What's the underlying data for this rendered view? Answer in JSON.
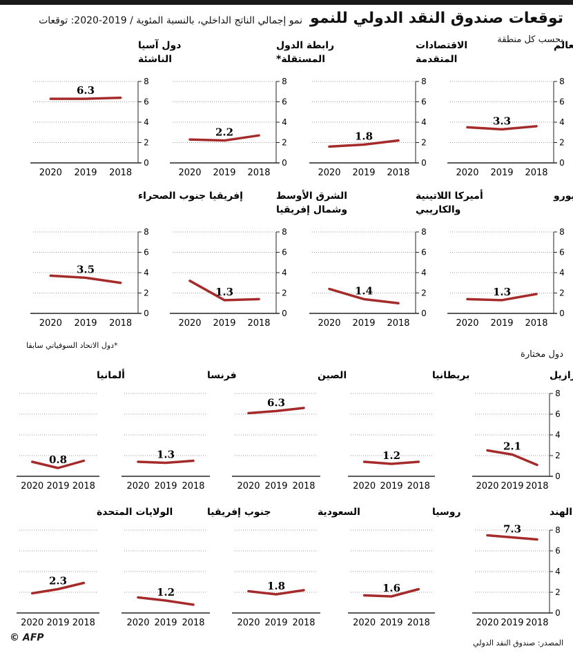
{
  "header": {
    "title": "توقعات صندوق النقد الدولي للنمو",
    "subtitle": "نمو إجمالي الناتج الداخلي، بالنسبة المئوية / 2019-2020: توقعات"
  },
  "sections": {
    "regions_label": "بحسب كل منطقة",
    "countries_label": "دول مختارة",
    "footnote": "*دول الاتحاد السوفياتي سابقا"
  },
  "footer": {
    "source": "المصدر: صندوق النقد الدولي",
    "credit": "© AFP"
  },
  "colors": {
    "line": "#a52a2a",
    "grid": "#999999",
    "axis": "#222222"
  },
  "chart_data": [
    {
      "type": "line",
      "title": [
        "العالم"
      ],
      "x": [
        "2018",
        "2019",
        "2020"
      ],
      "values": [
        3.6,
        3.3,
        3.5
      ],
      "label_value": "3.3",
      "ylim": [
        0,
        8
      ],
      "yticks": [
        "0",
        "2",
        "4",
        "6",
        "8"
      ]
    },
    {
      "type": "line",
      "title": [
        "الاقتصادات",
        "المتقدمة"
      ],
      "x": [
        "2018",
        "2019",
        "2020"
      ],
      "values": [
        2.2,
        1.8,
        1.6
      ],
      "label_value": "1.8",
      "ylim": [
        0,
        8
      ],
      "yticks": [
        "0",
        "2",
        "4",
        "6",
        "8"
      ]
    },
    {
      "type": "line",
      "title": [
        "رابطة الدول",
        "المستقلة*"
      ],
      "x": [
        "2018",
        "2019",
        "2020"
      ],
      "values": [
        2.7,
        2.2,
        2.3
      ],
      "label_value": "2.2",
      "ylim": [
        0,
        8
      ],
      "yticks": [
        "0",
        "2",
        "4",
        "6",
        "8"
      ]
    },
    {
      "type": "line",
      "title": [
        "دول آسيا",
        "الناشئة"
      ],
      "x": [
        "2018",
        "2019",
        "2020"
      ],
      "values": [
        6.4,
        6.3,
        6.3
      ],
      "label_value": "6.3",
      "ylim": [
        0,
        8
      ],
      "yticks": [
        "0",
        "2",
        "4",
        "6",
        "8"
      ]
    },
    {
      "type": "line",
      "title": [
        "منطقة اليورو"
      ],
      "x": [
        "2018",
        "2019",
        "2020"
      ],
      "values": [
        1.9,
        1.3,
        1.4
      ],
      "label_value": "1.3",
      "ylim": [
        0,
        8
      ],
      "yticks": [
        "0",
        "2",
        "4",
        "6",
        "8"
      ]
    },
    {
      "type": "line",
      "title": [
        "أميركا اللاتينية",
        "والكاريبي"
      ],
      "x": [
        "2018",
        "2019",
        "2020"
      ],
      "values": [
        1.0,
        1.4,
        2.4
      ],
      "label_value": "1.4",
      "ylim": [
        0,
        8
      ],
      "yticks": [
        "0",
        "2",
        "4",
        "6",
        "8"
      ]
    },
    {
      "type": "line",
      "title": [
        "الشرق الأوسط",
        "وشمال إفريقيا"
      ],
      "x": [
        "2018",
        "2019",
        "2020"
      ],
      "values": [
        1.4,
        1.3,
        3.2
      ],
      "label_value": "1.3",
      "ylim": [
        0,
        8
      ],
      "yticks": [
        "0",
        "2",
        "4",
        "6",
        "8"
      ]
    },
    {
      "type": "line",
      "title": [
        "إفريقيا جنوب الصحراء"
      ],
      "x": [
        "2018",
        "2019",
        "2020"
      ],
      "values": [
        3.0,
        3.5,
        3.7
      ],
      "label_value": "3.5",
      "ylim": [
        0,
        8
      ],
      "yticks": [
        "0",
        "2",
        "4",
        "6",
        "8"
      ]
    },
    {
      "type": "line",
      "title": [
        "البرازيل"
      ],
      "x": [
        "2018",
        "2019",
        "2020"
      ],
      "values": [
        1.1,
        2.1,
        2.5
      ],
      "label_value": "2.1",
      "ylim": [
        0,
        8
      ],
      "yticks": [
        "0",
        "2",
        "4",
        "6",
        "8"
      ]
    },
    {
      "type": "line",
      "title": [
        "بريطانيا"
      ],
      "x": [
        "2018",
        "2019",
        "2020"
      ],
      "values": [
        1.4,
        1.2,
        1.4
      ],
      "label_value": "1.2",
      "ylim": [
        0,
        8
      ],
      "yticks": [
        "0",
        "2",
        "4",
        "6",
        "8"
      ]
    },
    {
      "type": "line",
      "title": [
        "الصين"
      ],
      "x": [
        "2018",
        "2019",
        "2020"
      ],
      "values": [
        6.6,
        6.3,
        6.1
      ],
      "label_value": "6.3",
      "ylim": [
        0,
        8
      ],
      "yticks": [
        "0",
        "2",
        "4",
        "6",
        "8"
      ]
    },
    {
      "type": "line",
      "title": [
        "فرنسا"
      ],
      "x": [
        "2018",
        "2019",
        "2020"
      ],
      "values": [
        1.5,
        1.3,
        1.4
      ],
      "label_value": "1.3",
      "ylim": [
        0,
        8
      ],
      "yticks": [
        "0",
        "2",
        "4",
        "6",
        "8"
      ]
    },
    {
      "type": "line",
      "title": [
        "ألمانيا"
      ],
      "x": [
        "2018",
        "2019",
        "2020"
      ],
      "values": [
        1.5,
        0.8,
        1.4
      ],
      "label_value": "0.8",
      "ylim": [
        0,
        8
      ],
      "yticks": [
        "0",
        "2",
        "4",
        "6",
        "8"
      ]
    },
    {
      "type": "line",
      "title": [
        "الهند"
      ],
      "x": [
        "2018",
        "2019",
        "2020"
      ],
      "values": [
        7.1,
        7.3,
        7.5
      ],
      "label_value": "7.3",
      "ylim": [
        0,
        8
      ],
      "yticks": [
        "0",
        "2",
        "4",
        "6",
        "8"
      ]
    },
    {
      "type": "line",
      "title": [
        "روسيا"
      ],
      "x": [
        "2018",
        "2019",
        "2020"
      ],
      "values": [
        2.3,
        1.6,
        1.7
      ],
      "label_value": "1.6",
      "ylim": [
        0,
        8
      ],
      "yticks": [
        "0",
        "2",
        "4",
        "6",
        "8"
      ]
    },
    {
      "type": "line",
      "title": [
        "السعودية"
      ],
      "x": [
        "2018",
        "2019",
        "2020"
      ],
      "values": [
        2.2,
        1.8,
        2.1
      ],
      "label_value": "1.8",
      "ylim": [
        0,
        8
      ],
      "yticks": [
        "0",
        "2",
        "4",
        "6",
        "8"
      ]
    },
    {
      "type": "line",
      "title": [
        "جنوب إفريقيا"
      ],
      "x": [
        "2018",
        "2019",
        "2020"
      ],
      "values": [
        0.8,
        1.2,
        1.5
      ],
      "label_value": "1.2",
      "ylim": [
        0,
        8
      ],
      "yticks": [
        "0",
        "2",
        "4",
        "6",
        "8"
      ]
    },
    {
      "type": "line",
      "title": [
        "الولايات المتحدة"
      ],
      "x": [
        "2018",
        "2019",
        "2020"
      ],
      "values": [
        2.9,
        2.3,
        1.9
      ],
      "label_value": "2.3",
      "ylim": [
        0,
        8
      ],
      "yticks": [
        "0",
        "2",
        "4",
        "6",
        "8"
      ]
    }
  ]
}
